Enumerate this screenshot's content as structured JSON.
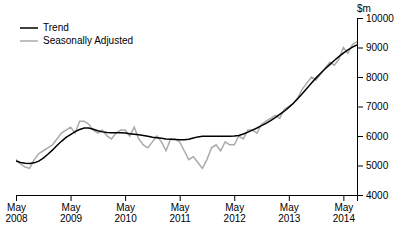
{
  "chart_data": {
    "type": "line",
    "ylabel": "$m",
    "categories": [
      "May\n2008",
      null,
      null,
      null,
      null,
      null,
      null,
      null,
      null,
      null,
      null,
      null,
      "May\n2009",
      null,
      null,
      null,
      null,
      null,
      null,
      null,
      null,
      null,
      null,
      null,
      "May\n2010",
      null,
      null,
      null,
      null,
      null,
      null,
      null,
      null,
      null,
      null,
      null,
      "May\n2011",
      null,
      null,
      null,
      null,
      null,
      null,
      null,
      null,
      null,
      null,
      null,
      "May\n2012",
      null,
      null,
      null,
      null,
      null,
      null,
      null,
      null,
      null,
      null,
      null,
      "May\n2013",
      null,
      null,
      null,
      null,
      null,
      null,
      null,
      null,
      null,
      null,
      null,
      "May\n2014",
      null,
      null,
      null
    ],
    "series": [
      {
        "name": "Seasonally Adjusted",
        "color": "#aaaaaa",
        "values": [
          5200,
          5050,
          4950,
          4900,
          5200,
          5400,
          5500,
          5600,
          5700,
          5900,
          6100,
          6200,
          6300,
          6100,
          6500,
          6500,
          6400,
          6200,
          6100,
          6200,
          6000,
          5900,
          6100,
          6200,
          6200,
          6000,
          6300,
          5900,
          5700,
          5600,
          5800,
          6000,
          5800,
          5500,
          5900,
          5900,
          5800,
          5500,
          5200,
          5300,
          5100,
          4900,
          5200,
          5600,
          5700,
          5500,
          5800,
          5700,
          5700,
          6000,
          5900,
          6200,
          6200,
          6100,
          6400,
          6500,
          6600,
          6700,
          6600,
          6900,
          7000,
          7100,
          7300,
          7600,
          7800,
          8000,
          7900,
          8100,
          8300,
          8500,
          8400,
          8600,
          9000,
          8800,
          9100,
          9200
        ]
      },
      {
        "name": "Trend",
        "color": "#000000",
        "values": [
          5150,
          5100,
          5080,
          5070,
          5090,
          5150,
          5250,
          5380,
          5520,
          5680,
          5820,
          5950,
          6050,
          6150,
          6220,
          6270,
          6270,
          6230,
          6180,
          6140,
          6120,
          6110,
          6110,
          6110,
          6100,
          6080,
          6060,
          6040,
          6020,
          5990,
          5960,
          5940,
          5920,
          5900,
          5890,
          5880,
          5870,
          5870,
          5890,
          5930,
          5970,
          5990,
          5990,
          5990,
          5990,
          5990,
          5990,
          5990,
          6000,
          6020,
          6070,
          6130,
          6200,
          6270,
          6350,
          6430,
          6520,
          6620,
          6730,
          6840,
          6970,
          7110,
          7270,
          7440,
          7620,
          7800,
          7970,
          8130,
          8280,
          8420,
          8560,
          8690,
          8810,
          8920,
          9010,
          9090
        ]
      }
    ],
    "ylim": [
      4000,
      10000
    ],
    "yticks": [
      4000,
      5000,
      6000,
      7000,
      8000,
      9000,
      10000
    ],
    "legend": "top-left",
    "grid": false
  }
}
